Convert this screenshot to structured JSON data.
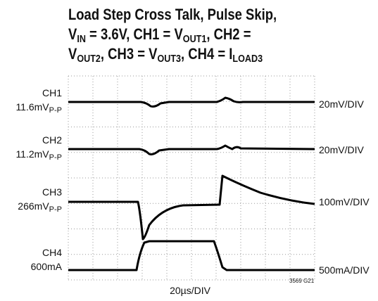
{
  "title": {
    "line1": "Load Step Cross Talk, Pulse Skip,",
    "line2": [
      "V",
      "IN",
      " = 3.6V, CH1 = V",
      "OUT1",
      ", CH2 ="
    ],
    "line3": [
      "V",
      "OUT2",
      ", CH3 = V",
      "OUT3",
      ", CH4 = I",
      "LOAD3"
    ]
  },
  "channels": [
    {
      "name": "CH1",
      "value": "11.6mV",
      "value_sub": "P-P",
      "scale": "20mV/DIV"
    },
    {
      "name": "CH2",
      "value": "11.2mV",
      "value_sub": "P-P",
      "scale": "20mV/DIV"
    },
    {
      "name": "CH3",
      "value": "266mV",
      "value_sub": "P-P",
      "scale": "100mV/DIV"
    },
    {
      "name": "CH4",
      "value": "600mA",
      "scale": "500mA/DIV"
    }
  ],
  "time_scale": "20µs/DIV",
  "figure_id": "3569 G21"
}
